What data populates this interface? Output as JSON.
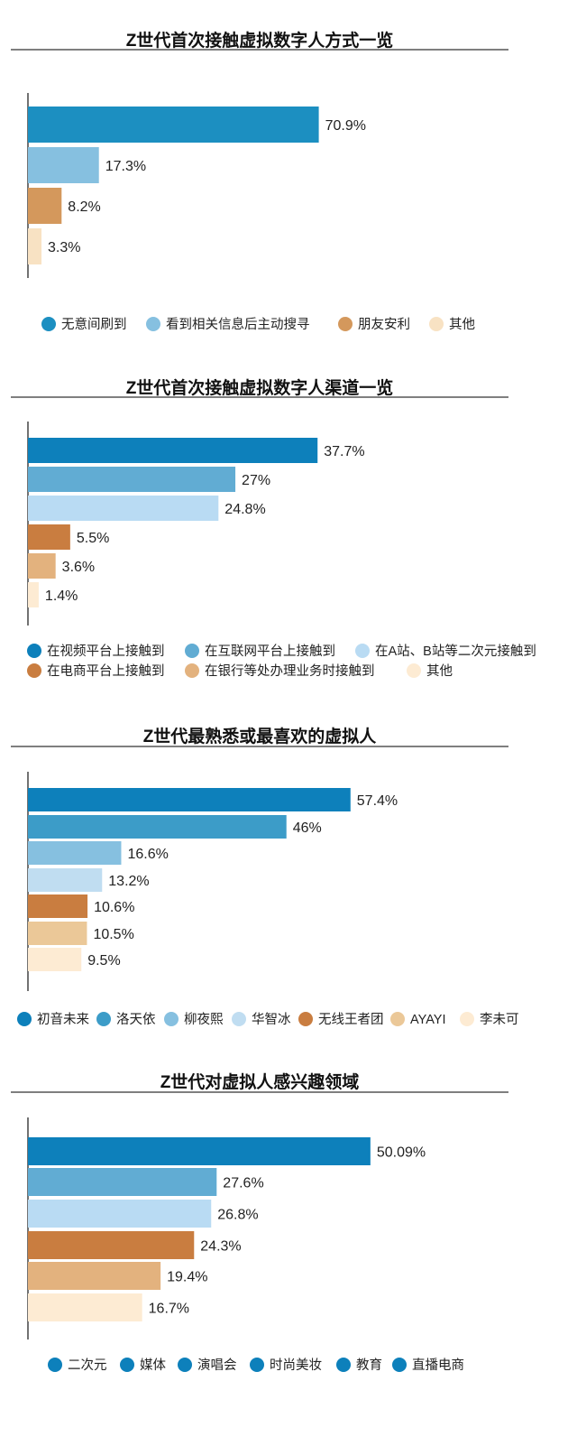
{
  "chart_data": [
    {
      "type": "bar",
      "orientation": "horizontal",
      "title": "Z世代首次接触虚拟数字人方式一览",
      "categories": [
        "无意间刷到",
        "看到相关信息后主动搜寻",
        "朋友安利",
        "其他"
      ],
      "values": [
        70.9,
        17.3,
        8.2,
        3.3
      ],
      "value_labels": [
        "70.9%",
        "17.3%",
        "8.2%",
        "3.3%"
      ],
      "colors": [
        "#1c8fc1",
        "#86c0e0",
        "#d4985c",
        "#f8e2c3"
      ],
      "legend_colors": [
        "#1c8fc1",
        "#86c0e0",
        "#d4985c",
        "#f8e2c3"
      ],
      "xlim": [
        0,
        100
      ],
      "legend_position": "bottom"
    },
    {
      "type": "bar",
      "orientation": "horizontal",
      "title": "Z世代首次接触虚拟数字人渠道一览",
      "categories": [
        "在视频平台上接触到",
        "在互联网平台上接触到",
        "在A站、B站等二次元接触到",
        "在电商平台上接触到",
        "在银行等处办理业务时接触到",
        "其他"
      ],
      "values": [
        37.7,
        27,
        24.8,
        5.5,
        3.6,
        1.4
      ],
      "value_labels": [
        "37.7%",
        "27%",
        "24.8%",
        "5.5%",
        "3.6%",
        "1.4%"
      ],
      "colors": [
        "#0d80bb",
        "#61acd3",
        "#b9dbf3",
        "#c97d40",
        "#e3b27e",
        "#fdebd3"
      ],
      "legend_colors": [
        "#0d80bb",
        "#61acd3",
        "#b9dbf3",
        "#c97d40",
        "#e3b27e",
        "#fdebd3"
      ],
      "xlim": [
        0,
        53.4
      ],
      "legend_position": "bottom"
    },
    {
      "type": "bar",
      "orientation": "horizontal",
      "title": "Z世代最熟悉或最喜欢的虚拟人",
      "categories": [
        "初音未来",
        "洛天依",
        "柳夜熙",
        "华智冰",
        "无线王者团",
        "AYAYI",
        "李未可"
      ],
      "values": [
        57.4,
        46,
        16.6,
        13.2,
        10.6,
        10.5,
        9.5
      ],
      "value_labels": [
        "57.4%",
        "46%",
        "16.6%",
        "13.2%",
        "10.6%",
        "10.5%",
        "9.5%"
      ],
      "colors": [
        "#0d80bb",
        "#3c9cc8",
        "#86c0e0",
        "#c0ddf1",
        "#c97d40",
        "#ebc898",
        "#fdebd3"
      ],
      "legend_colors": [
        "#0d80bb",
        "#3c9cc8",
        "#86c0e0",
        "#c0ddf1",
        "#c97d40",
        "#ebc898",
        "#fdebd3"
      ],
      "xlim": [
        0,
        73
      ],
      "legend_position": "bottom"
    },
    {
      "type": "bar",
      "orientation": "horizontal",
      "title": "Z世代对虚拟人感兴趣领域",
      "categories": [
        "二次元",
        "媒体",
        "演唱会",
        "时尚美妆",
        "教育",
        "直播电商"
      ],
      "values": [
        50.09,
        27.6,
        26.8,
        24.3,
        19.4,
        16.7
      ],
      "value_labels": [
        "50.09%",
        "27.6%",
        "26.8%",
        "24.3%",
        "19.4%",
        "16.7%"
      ],
      "colors": [
        "#0d80bb",
        "#61acd3",
        "#b9dbf3",
        "#c97d40",
        "#e3b27e",
        "#fdebd3"
      ],
      "legend_colors": [
        "#0d80bb",
        "#0d80bb",
        "#0d80bb",
        "#0d80bb",
        "#0d80bb",
        "#0d80bb"
      ],
      "xlim": [
        0,
        60
      ],
      "legend_position": "bottom"
    }
  ]
}
